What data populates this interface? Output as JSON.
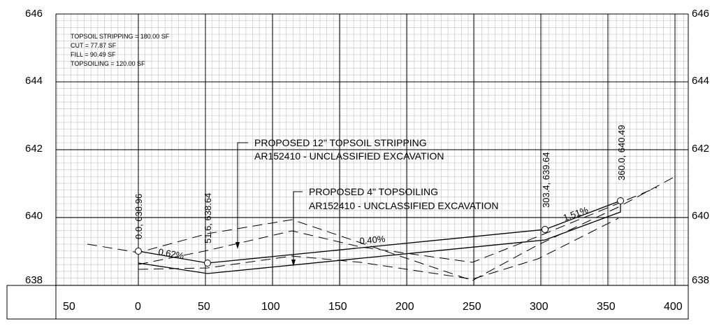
{
  "summary": {
    "topsoil_stripping": "TOPSOIL STRIPPING = 180.00 SF",
    "cut": "CUT = 77.87 SF",
    "fill": "FILL = 90.49 SF",
    "topsoiling": "TOPSOILING = 120.00 SF"
  },
  "y_axis": {
    "left": [
      "646",
      "644",
      "642",
      "640",
      "638"
    ],
    "right": [
      "646",
      "644",
      "642",
      "640",
      "638"
    ]
  },
  "x_axis": {
    "labels": [
      "50",
      "0",
      "50",
      "100",
      "150",
      "200",
      "250",
      "300",
      "350",
      "400"
    ]
  },
  "annotations": {
    "stripping_line1": "PROPOSED 12\" TOPSOIL STRIPPING",
    "stripping_line2": "AR152410 - UNCLASSIFIED EXCAVATION",
    "topsoiling_line1": "PROPOSED 4\" TOPSOILING",
    "topsoiling_line2": "AR152410 - UNCLASSIFIED EXCAVATION"
  },
  "points": {
    "p1": "0.0, 638.96",
    "p2": "51.6, 638.64",
    "p3": "303.4, 639.64",
    "p4": "360.0, 640.49"
  },
  "grades": {
    "g1": "0.62%",
    "g2": "0.40%",
    "g3": "1.51%"
  }
}
